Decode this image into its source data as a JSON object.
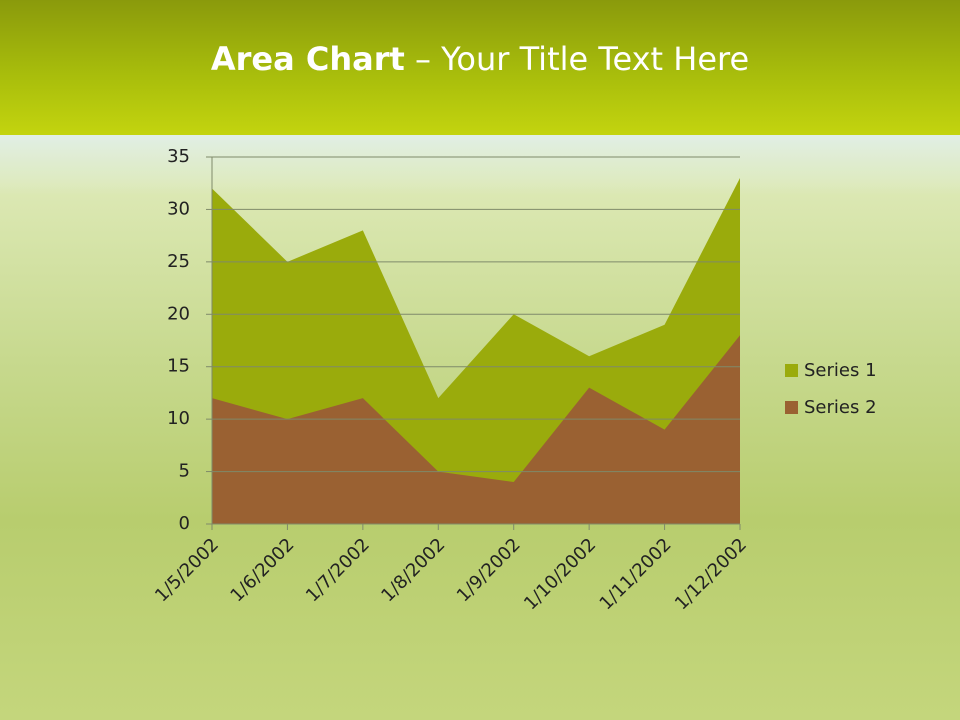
{
  "chart_data": {
    "type": "area",
    "title": [
      "Area Chart",
      "– Your Title Text Here"
    ],
    "categories": [
      "1/5/2002",
      "1/6/2002",
      "1/7/2002",
      "1/8/2002",
      "1/9/2002",
      "1/10/2002",
      "1/11/2002",
      "1/12/2002"
    ],
    "series": [
      {
        "name": "Series 1",
        "color": "#9aab0c",
        "values": [
          32,
          25,
          28,
          12,
          20,
          16,
          19,
          33
        ]
      },
      {
        "name": "Series 2",
        "color": "#9a6132",
        "values": [
          12,
          10,
          12,
          5,
          4,
          13,
          9,
          18
        ]
      }
    ],
    "ylim": [
      0,
      35
    ],
    "yticks": [
      0,
      5,
      10,
      15,
      20,
      25,
      30,
      35
    ],
    "grid": true,
    "legend": "right"
  }
}
